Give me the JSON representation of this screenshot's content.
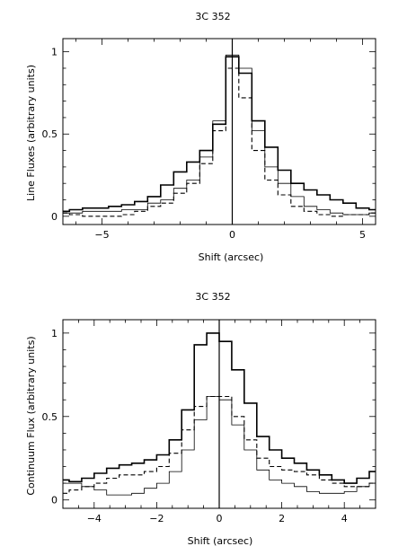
{
  "chart_data": [
    {
      "type": "line",
      "title": "3C 352",
      "xlabel": "Shift (arcsec)",
      "ylabel": "Line Fluxes (arbitrary units)",
      "xlim": [
        -6.5,
        5.5
      ],
      "ylim": [
        -0.05,
        1.08
      ],
      "xticks": [
        -5,
        0,
        5
      ],
      "yticks": [
        0,
        0.5,
        1
      ],
      "xtick_labels": [
        "−5",
        "0",
        "5"
      ],
      "ytick_labels": [
        "0",
        "0.5",
        "1"
      ],
      "grid": false,
      "vline_x": 0,
      "series": [
        {
          "style": "solid-heavy",
          "x": [
            -6.5,
            -6.0,
            -5.5,
            -5.0,
            -4.5,
            -4.0,
            -3.5,
            -3.0,
            -2.5,
            -2.0,
            -1.5,
            -1.0,
            -0.5,
            0.0,
            0.5,
            1.0,
            1.5,
            2.0,
            2.5,
            3.0,
            3.5,
            4.0,
            4.5,
            5.0,
            5.5
          ],
          "y": [
            0.03,
            0.04,
            0.05,
            0.05,
            0.06,
            0.07,
            0.09,
            0.12,
            0.19,
            0.27,
            0.33,
            0.4,
            0.56,
            0.97,
            0.87,
            0.58,
            0.42,
            0.28,
            0.2,
            0.16,
            0.13,
            0.1,
            0.08,
            0.05,
            0.04
          ]
        },
        {
          "style": "solid-thin",
          "x": [
            -6.5,
            -6.0,
            -5.5,
            -5.0,
            -4.5,
            -4.0,
            -3.5,
            -3.0,
            -2.5,
            -2.0,
            -1.5,
            -1.0,
            -0.5,
            0.0,
            0.5,
            1.0,
            1.5,
            2.0,
            2.5,
            3.0,
            3.5,
            4.0,
            4.5,
            5.0,
            5.5
          ],
          "y": [
            0.02,
            0.02,
            0.03,
            0.03,
            0.03,
            0.04,
            0.04,
            0.08,
            0.1,
            0.17,
            0.22,
            0.36,
            0.58,
            0.98,
            0.9,
            0.52,
            0.3,
            0.2,
            0.12,
            0.06,
            0.04,
            0.02,
            0.01,
            0.01,
            0.02
          ]
        },
        {
          "style": "dashed",
          "x": [
            -6.5,
            -6.0,
            -5.5,
            -5.0,
            -4.5,
            -4.0,
            -3.5,
            -3.0,
            -2.5,
            -2.0,
            -1.5,
            -1.0,
            -0.5,
            0.0,
            0.5,
            1.0,
            1.5,
            2.0,
            2.5,
            3.0,
            3.5,
            4.0,
            4.5,
            5.0,
            5.5
          ],
          "y": [
            0.02,
            0.01,
            0.0,
            0.0,
            0.0,
            0.01,
            0.03,
            0.06,
            0.08,
            0.14,
            0.2,
            0.32,
            0.52,
            0.9,
            0.72,
            0.4,
            0.22,
            0.13,
            0.06,
            0.03,
            0.01,
            0.0,
            0.01,
            0.01,
            0.02
          ]
        }
      ]
    },
    {
      "type": "line",
      "title": "3C 352",
      "xlabel": "Shift (arcsec)",
      "ylabel": "Continuum Flux (arbitrary units)",
      "xlim": [
        -5,
        5
      ],
      "ylim": [
        -0.05,
        1.08
      ],
      "xticks": [
        -4,
        -2,
        0,
        2,
        4
      ],
      "yticks": [
        0,
        0.5,
        1
      ],
      "xtick_labels": [
        "−4",
        "−2",
        "0",
        "2",
        "4"
      ],
      "ytick_labels": [
        "0",
        "0.5",
        "1"
      ],
      "grid": false,
      "vline_x": 0,
      "series": [
        {
          "style": "solid-heavy",
          "x": [
            -5.0,
            -4.6,
            -4.2,
            -3.8,
            -3.4,
            -3.0,
            -2.6,
            -2.2,
            -1.8,
            -1.4,
            -1.0,
            -0.6,
            -0.2,
            0.2,
            0.6,
            1.0,
            1.4,
            1.8,
            2.2,
            2.6,
            3.0,
            3.4,
            3.8,
            4.2,
            4.6,
            5.0
          ],
          "y": [
            0.12,
            0.11,
            0.13,
            0.16,
            0.19,
            0.21,
            0.22,
            0.24,
            0.27,
            0.36,
            0.54,
            0.93,
            1.0,
            0.95,
            0.78,
            0.58,
            0.38,
            0.3,
            0.25,
            0.22,
            0.18,
            0.15,
            0.12,
            0.1,
            0.13,
            0.17
          ]
        },
        {
          "style": "solid-thin",
          "x": [
            -5.0,
            -4.6,
            -4.2,
            -3.8,
            -3.4,
            -3.0,
            -2.6,
            -2.2,
            -1.8,
            -1.4,
            -1.0,
            -0.6,
            -0.2,
            0.2,
            0.6,
            1.0,
            1.4,
            1.8,
            2.2,
            2.6,
            3.0,
            3.4,
            3.8,
            4.2,
            4.6,
            5.0
          ],
          "y": [
            0.1,
            0.1,
            0.08,
            0.06,
            0.03,
            0.03,
            0.04,
            0.07,
            0.1,
            0.17,
            0.3,
            0.48,
            0.62,
            0.6,
            0.45,
            0.3,
            0.18,
            0.12,
            0.1,
            0.08,
            0.05,
            0.04,
            0.04,
            0.05,
            0.08,
            0.1
          ]
        },
        {
          "style": "dashed",
          "x": [
            -5.0,
            -4.6,
            -4.2,
            -3.8,
            -3.4,
            -3.0,
            -2.6,
            -2.2,
            -1.8,
            -1.4,
            -1.0,
            -0.6,
            -0.2,
            0.2,
            0.6,
            1.0,
            1.4,
            1.8,
            2.2,
            2.6,
            3.0,
            3.4,
            3.8,
            4.2,
            4.6,
            5.0
          ],
          "y": [
            0.04,
            0.06,
            0.08,
            0.1,
            0.13,
            0.15,
            0.15,
            0.17,
            0.2,
            0.28,
            0.42,
            0.56,
            0.62,
            0.62,
            0.5,
            0.36,
            0.25,
            0.2,
            0.18,
            0.17,
            0.15,
            0.12,
            0.1,
            0.08,
            0.08,
            0.1
          ]
        }
      ]
    }
  ]
}
